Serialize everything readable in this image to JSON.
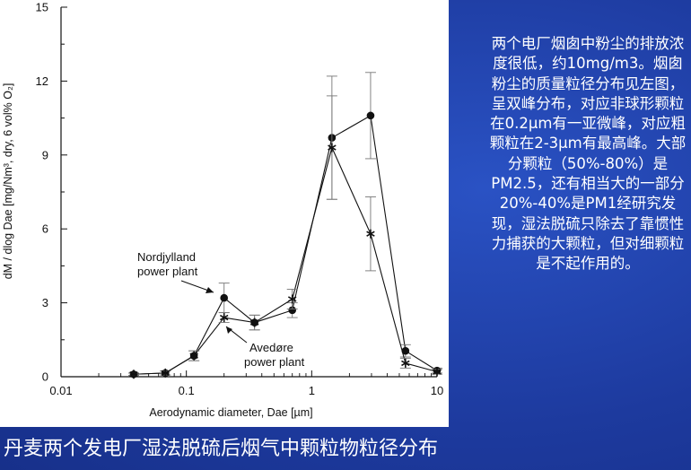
{
  "side_text": "两个电厂烟囱中粉尘的排放浓度很低，约10mg/m3。烟囱粉尘的质量粒径分布见左图，呈双峰分布，对应非球形颗粒在0.2μm有一亚微峰，对应粗颗粒在2-3μm有最高峰。大部分颗粒（50%-80%）是PM2.5，还有相当大的一部分20%-40%是PM1经研究发现，湿法脱硫只除去了靠惯性力捕获的大颗粒，但对细颗粒是不起作用的。",
  "caption": "丹麦两个发电厂湿法脱硫后烟气中颗粒物粒径分布",
  "colors": {
    "background": "#1f3fa6",
    "panel": "#ffffff",
    "ink": "#111111"
  },
  "chart_data": {
    "type": "line",
    "xlabel": "Aerodynamic diameter, Dae [µm]",
    "ylabel": "dM / dlog Dae [mg/Nm³, dry, 6 vol% O₂]",
    "xscale": "log",
    "xlim": [
      0.01,
      10
    ],
    "ylim": [
      0,
      15
    ],
    "x_ticks": [
      "0.01",
      "0.1",
      "1",
      "10"
    ],
    "y_ticks": [
      "0",
      "3",
      "6",
      "9",
      "12",
      "15"
    ],
    "grid": false,
    "series": [
      {
        "name": "Nordjylland power plant",
        "marker": "circle",
        "x": [
          0.038,
          0.068,
          0.115,
          0.2,
          0.35,
          0.7,
          1.45,
          2.95,
          5.6,
          10
        ],
        "y": [
          0.1,
          0.15,
          0.85,
          3.2,
          2.2,
          2.7,
          9.7,
          10.6,
          1.05,
          0.25
        ],
        "yerr": [
          0.05,
          0.08,
          0.2,
          0.6,
          0.3,
          0.3,
          2.5,
          1.75,
          0.25,
          0.1
        ]
      },
      {
        "name": "Avedøre power plant",
        "marker": "asterisk",
        "x": [
          0.038,
          0.068,
          0.115,
          0.2,
          0.35,
          0.7,
          1.45,
          2.95,
          5.6,
          10
        ],
        "y": [
          0.1,
          0.15,
          0.85,
          2.4,
          2.2,
          3.15,
          9.3,
          5.8,
          0.55,
          0.2
        ],
        "yerr": [
          0.05,
          0.08,
          0.2,
          0.2,
          0.3,
          0.4,
          2.1,
          1.5,
          0.2,
          0.1
        ]
      }
    ],
    "annotations": [
      {
        "text_lines": [
          "Nordjylland",
          "power plant"
        ]
      },
      {
        "text_lines": [
          "Avedøre",
          "power plant"
        ]
      }
    ]
  }
}
